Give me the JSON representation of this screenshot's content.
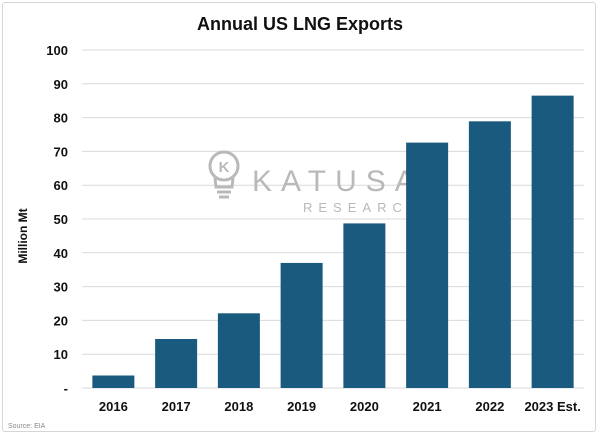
{
  "chart_data": {
    "type": "bar",
    "title": "Annual US LNG Exports",
    "xlabel": "",
    "ylabel": "Million Mt",
    "categories": [
      "2016",
      "2017",
      "2018",
      "2019",
      "2020",
      "2021",
      "2022",
      "2023 Est."
    ],
    "values": [
      3.7,
      14.5,
      22.1,
      37.0,
      48.7,
      72.6,
      78.9,
      86.5
    ],
    "ylim": [
      0,
      100
    ],
    "yticks": [
      "-",
      "10",
      "20",
      "30",
      "40",
      "50",
      "60",
      "70",
      "80",
      "90",
      "100"
    ],
    "grid": true,
    "legend": "none",
    "bar_color": "#1a5a7e"
  },
  "source": "Source: EIA",
  "watermark": {
    "name": "KATUSA",
    "sub": "RESEARCH",
    "logo_letter": "K"
  }
}
